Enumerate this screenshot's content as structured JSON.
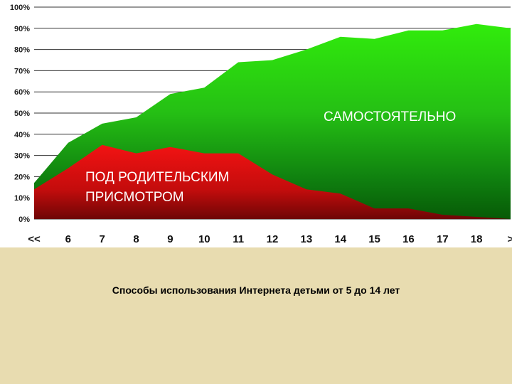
{
  "caption": "Способы использования Интернета детьми от 5 до 14 лет",
  "chart_data": {
    "type": "area",
    "categories": [
      "<<",
      "6",
      "7",
      "8",
      "9",
      "10",
      "11",
      "12",
      "13",
      "14",
      "15",
      "16",
      "17",
      "18",
      ">"
    ],
    "ylim": [
      0,
      100
    ],
    "y_ticks": [
      "0%",
      "10%",
      "20%",
      "30%",
      "40%",
      "50%",
      "60%",
      "70%",
      "80%",
      "90%",
      "100%"
    ],
    "grid": true,
    "series": [
      {
        "name": "САМОСТОЯТЕЛЬНО",
        "color": "#2ee10c",
        "values": [
          17,
          36,
          45,
          48,
          59,
          62,
          74,
          75,
          80,
          86,
          85,
          89,
          89,
          92,
          90
        ]
      },
      {
        "name": "ПОД РОДИТЕЛЬСКИМ ПРИСМОТРОМ",
        "label_lines": [
          "ПОД РОДИТЕЛЬСКИМ",
          "ПРИСМОТРОМ"
        ],
        "color": "#e01010",
        "values": [
          14,
          24,
          35,
          31,
          34,
          31,
          31,
          21,
          14,
          12,
          5,
          5,
          2,
          1,
          0
        ]
      }
    ]
  }
}
